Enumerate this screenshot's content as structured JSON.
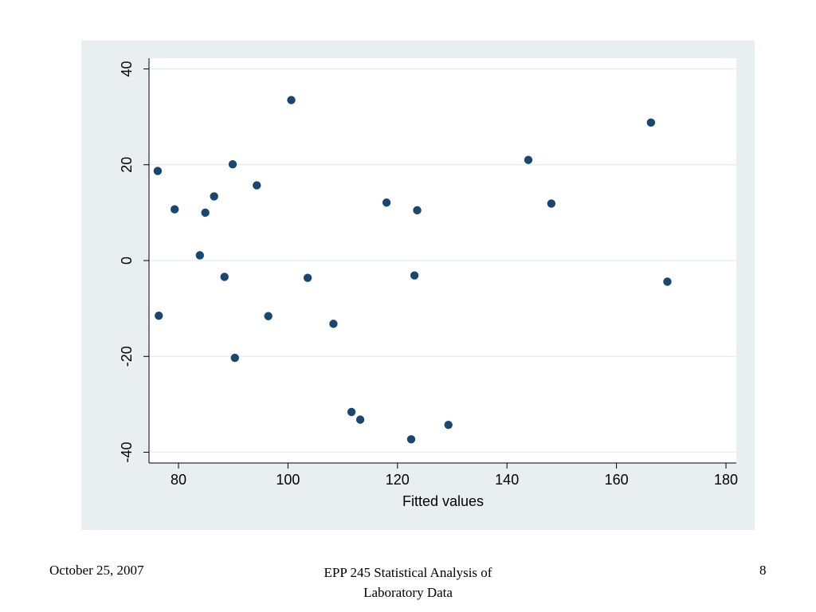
{
  "chart_data": {
    "type": "scatter",
    "title": "",
    "xlabel": "Fitted values",
    "ylabel": "",
    "xlim": [
      75,
      182
    ],
    "ylim": [
      -42,
      42
    ],
    "x_ticks": [
      "80",
      "100",
      "120",
      "140",
      "160",
      "180"
    ],
    "y_ticks": [
      "-40",
      "-20",
      "0",
      "20",
      "40"
    ],
    "grid": true,
    "marker_color": "#1a476f",
    "plot_background": "#ffffff",
    "panel_background": "#e9eef0",
    "series": [
      {
        "points": [
          [
            76.2,
            18.7
          ],
          [
            76.4,
            -11.5
          ],
          [
            79.3,
            10.7
          ],
          [
            83.9,
            1.1
          ],
          [
            84.9,
            10.0
          ],
          [
            86.5,
            13.4
          ],
          [
            88.4,
            -3.4
          ],
          [
            89.9,
            20.1
          ],
          [
            90.3,
            -20.3
          ],
          [
            94.3,
            15.7
          ],
          [
            96.4,
            -11.6
          ],
          [
            100.6,
            33.5
          ],
          [
            103.6,
            -3.6
          ],
          [
            108.3,
            -13.2
          ],
          [
            111.6,
            -31.6
          ],
          [
            113.2,
            -33.2
          ],
          [
            118.0,
            12.1
          ],
          [
            122.5,
            -37.3
          ],
          [
            123.1,
            -3.1
          ],
          [
            123.6,
            10.5
          ],
          [
            129.3,
            -34.3
          ],
          [
            143.9,
            21.0
          ],
          [
            148.1,
            11.9
          ],
          [
            166.3,
            28.8
          ],
          [
            169.3,
            -4.4
          ]
        ]
      }
    ]
  },
  "footer": {
    "date": "October 25, 2007",
    "course_line1": "EPP 245 Statistical Analysis of",
    "course_line2": "Laboratory Data",
    "page": "8"
  }
}
